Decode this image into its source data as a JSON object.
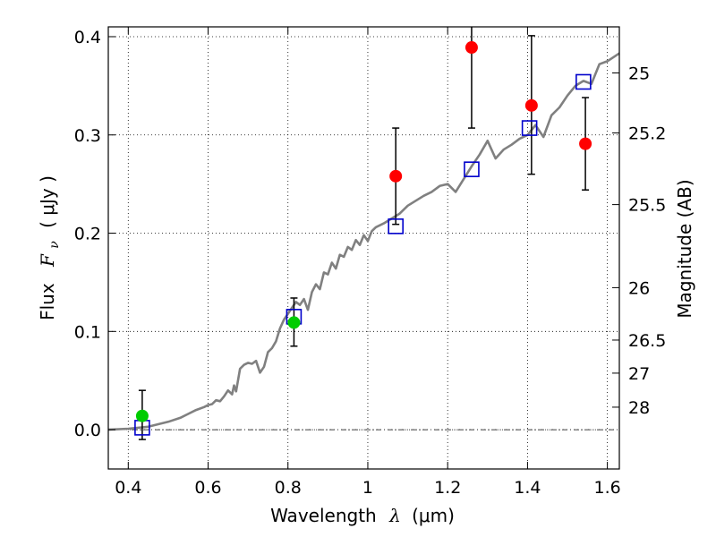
{
  "chart_data": {
    "type": "scatter",
    "title": "",
    "xlabel": {
      "prefix": "Wavelength",
      "symbol": "λ",
      "unit": "(μm)"
    },
    "ylabel": {
      "prefix": "Flux",
      "symbol": "F",
      "subscript": "ν",
      "unit": "( μJy )"
    },
    "ylabel_right": "Magnitude (AB)",
    "xlim": [
      0.35,
      1.63
    ],
    "ylim": [
      -0.04,
      0.41
    ],
    "grid": true,
    "x_ticks": [
      0.4,
      0.6,
      0.8,
      1.0,
      1.2,
      1.4,
      1.6
    ],
    "x_tick_labels": [
      "0.4",
      "0.6",
      "0.8",
      "1",
      "1.2",
      "1.4",
      "1.6"
    ],
    "y_ticks": [
      0.0,
      0.1,
      0.2,
      0.3,
      0.4
    ],
    "y_tick_labels": [
      "0.0",
      "0.1",
      "0.2",
      "0.3",
      "0.4"
    ],
    "right_ticks": [
      {
        "label": "25",
        "mag": 25.0
      },
      {
        "label": "25.2",
        "mag": 25.2
      },
      {
        "label": "25.5",
        "mag": 25.5
      },
      {
        "label": "26",
        "mag": 26.0
      },
      {
        "label": "26.5",
        "mag": 26.5
      },
      {
        "label": "27",
        "mag": 27.0
      },
      {
        "label": "28",
        "mag": 28.0
      }
    ],
    "reference_line_y": 0.0,
    "series": [
      {
        "kind": "line",
        "color": "#808080",
        "x": [
          0.35,
          0.4,
          0.45,
          0.5,
          0.53,
          0.55,
          0.57,
          0.59,
          0.6,
          0.61,
          0.62,
          0.63,
          0.64,
          0.65,
          0.66,
          0.665,
          0.67,
          0.68,
          0.69,
          0.7,
          0.71,
          0.72,
          0.73,
          0.74,
          0.75,
          0.76,
          0.77,
          0.78,
          0.79,
          0.8,
          0.81,
          0.82,
          0.83,
          0.84,
          0.85,
          0.86,
          0.87,
          0.88,
          0.89,
          0.9,
          0.91,
          0.92,
          0.93,
          0.94,
          0.95,
          0.96,
          0.97,
          0.98,
          0.99,
          1.0,
          1.01,
          1.02,
          1.04,
          1.06,
          1.08,
          1.1,
          1.12,
          1.14,
          1.16,
          1.18,
          1.2,
          1.22,
          1.24,
          1.26,
          1.28,
          1.3,
          1.32,
          1.34,
          1.36,
          1.38,
          1.4,
          1.42,
          1.44,
          1.46,
          1.48,
          1.5,
          1.52,
          1.54,
          1.56,
          1.58,
          1.6,
          1.63
        ],
        "y": [
          0.0,
          0.001,
          0.003,
          0.008,
          0.012,
          0.016,
          0.02,
          0.023,
          0.025,
          0.026,
          0.03,
          0.029,
          0.034,
          0.04,
          0.036,
          0.045,
          0.039,
          0.062,
          0.066,
          0.068,
          0.067,
          0.07,
          0.058,
          0.064,
          0.079,
          0.083,
          0.09,
          0.103,
          0.112,
          0.118,
          0.124,
          0.13,
          0.127,
          0.133,
          0.122,
          0.14,
          0.148,
          0.143,
          0.16,
          0.158,
          0.17,
          0.164,
          0.178,
          0.176,
          0.186,
          0.183,
          0.193,
          0.188,
          0.198,
          0.192,
          0.202,
          0.206,
          0.21,
          0.215,
          0.22,
          0.228,
          0.233,
          0.238,
          0.242,
          0.248,
          0.25,
          0.242,
          0.255,
          0.268,
          0.28,
          0.294,
          0.276,
          0.285,
          0.29,
          0.296,
          0.3,
          0.31,
          0.298,
          0.32,
          0.328,
          0.34,
          0.35,
          0.355,
          0.352,
          0.372,
          0.375,
          0.383
        ]
      },
      {
        "kind": "marker-circle",
        "color": "#00cc00",
        "x": [
          0.435,
          0.815
        ],
        "y": [
          0.014,
          0.109
        ],
        "yerr_low": [
          0.024,
          0.024
        ],
        "yerr_high": [
          0.026,
          0.025
        ]
      },
      {
        "kind": "marker-circle",
        "color": "#ff0000",
        "x": [
          1.07,
          1.26,
          1.41,
          1.545
        ],
        "y": [
          0.258,
          0.389,
          0.33,
          0.291
        ],
        "yerr_low": [
          0.049,
          0.082,
          0.07,
          0.047
        ],
        "yerr_high": [
          0.049,
          0.082,
          0.071,
          0.047
        ]
      },
      {
        "kind": "marker-square",
        "color": "#0000cc",
        "x": [
          0.435,
          0.815,
          1.07,
          1.26,
          1.405,
          1.54
        ],
        "y": [
          0.002,
          0.115,
          0.207,
          0.265,
          0.307,
          0.354
        ]
      }
    ]
  }
}
